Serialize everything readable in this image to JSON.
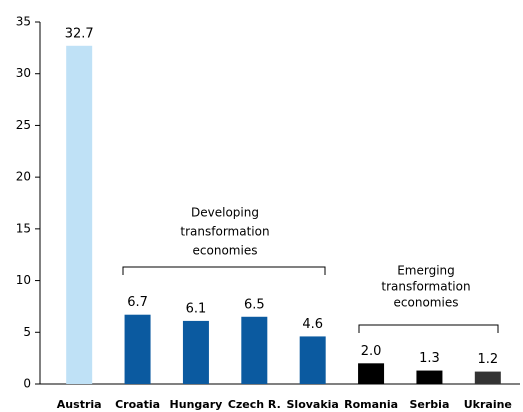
{
  "chart_data": {
    "type": "bar",
    "categories": [
      "Austria",
      "Croatia",
      "Hungary",
      "Czech R.",
      "Slovakia",
      "Romania",
      "Serbia",
      "Ukraine"
    ],
    "values": [
      32.7,
      6.7,
      6.1,
      6.5,
      4.6,
      2.0,
      1.3,
      1.2
    ],
    "value_labels": [
      "32.7",
      "6.7",
      "6.1",
      "6.5",
      "4.6",
      "2.0",
      "1.3",
      "1.2"
    ],
    "colors": [
      "#bfe1f6",
      "#0b5aa0",
      "#0b5aa0",
      "#0b5aa0",
      "#0b5aa0",
      "#000000",
      "#000000",
      "#333333"
    ],
    "ylim": [
      0,
      35
    ],
    "yticks": [
      0,
      5,
      10,
      15,
      20,
      25,
      30,
      35
    ],
    "grid": false,
    "annotations": [
      {
        "lines": [
          "Developing",
          "transformation",
          "economies"
        ]
      },
      {
        "lines": [
          "Emerging",
          "transformation",
          "economies"
        ]
      }
    ]
  }
}
